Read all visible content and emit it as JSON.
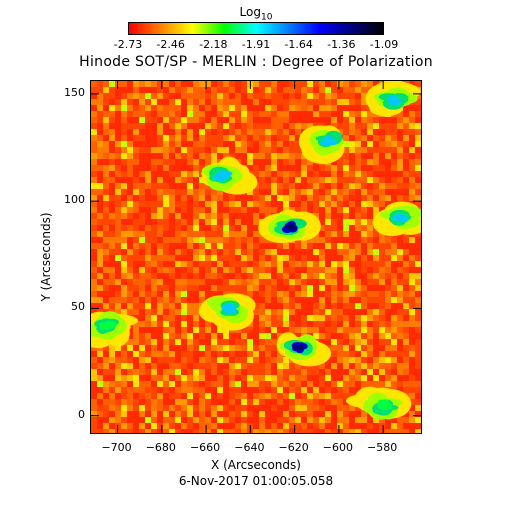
{
  "chart_data": {
    "type": "heatmap",
    "title": "Hinode SOT/SP - MERLIN : Degree of Polarization",
    "colorbar": {
      "label_base": "Log",
      "label_sub": "10",
      "ticks": [
        "-2.73",
        "-2.46",
        "-2.18",
        "-1.91",
        "-1.64",
        "-1.36",
        "-1.09"
      ],
      "range": [
        -2.73,
        -1.09
      ],
      "colors": [
        "#ff0000",
        "#ff8000",
        "#ffff00",
        "#00ff00",
        "#00ffff",
        "#0080ff",
        "#0000ff",
        "#000080",
        "#000000"
      ]
    },
    "xlabel": "X (Arcseconds)",
    "ylabel": "Y (Arcseconds)",
    "x_ticks": [
      -700,
      -680,
      -660,
      -640,
      -620,
      -600,
      -580
    ],
    "y_ticks": [
      0,
      50,
      100,
      150
    ],
    "xlim": [
      -712,
      -562
    ],
    "ylim": [
      -9,
      156
    ],
    "background_level": "orange-red",
    "high_polarization_regions": [
      {
        "x": -618,
        "y": 32,
        "level": "-1.36"
      },
      {
        "x": -622,
        "y": 88,
        "level": "-1.36"
      },
      {
        "x": -652,
        "y": 112,
        "level": "-1.64"
      },
      {
        "x": -605,
        "y": 128,
        "level": "-1.64"
      },
      {
        "x": -575,
        "y": 147,
        "level": "-1.64"
      },
      {
        "x": -572,
        "y": 92,
        "level": "-1.64"
      },
      {
        "x": -580,
        "y": 5,
        "level": "-1.91"
      },
      {
        "x": -650,
        "y": 50,
        "level": "-1.64"
      },
      {
        "x": -705,
        "y": 42,
        "level": "-1.91"
      }
    ],
    "timestamp": "6-Nov-2017 01:00:05.058"
  }
}
